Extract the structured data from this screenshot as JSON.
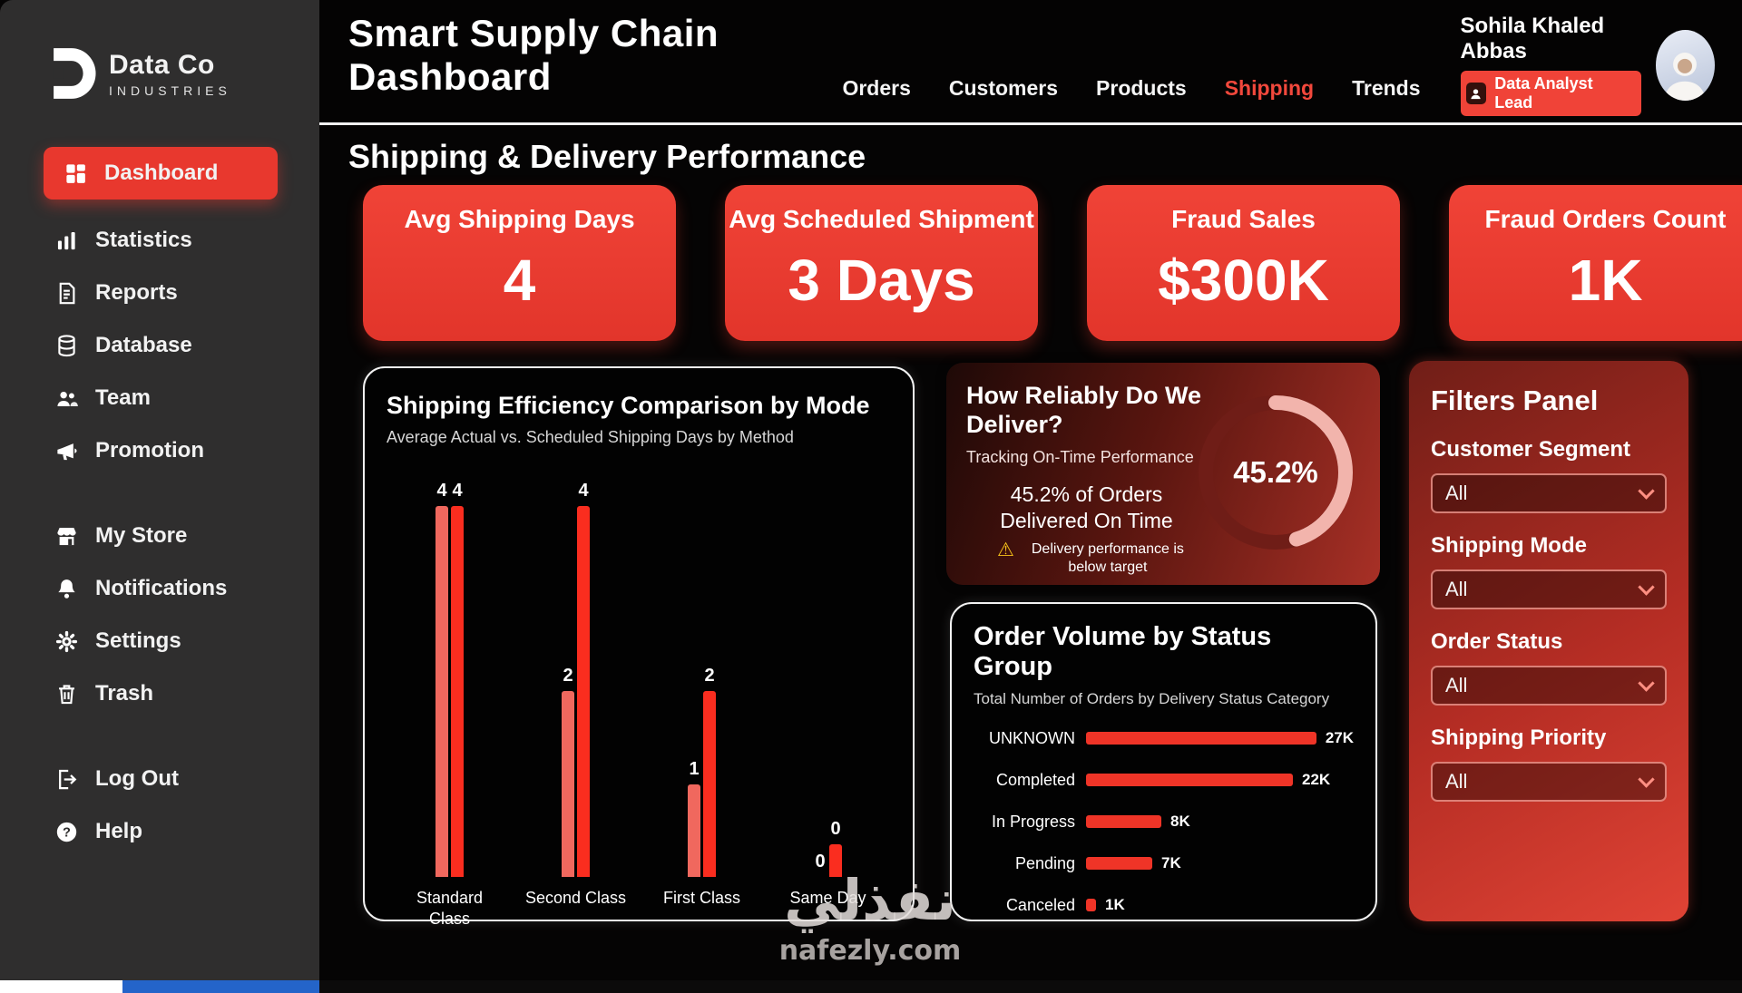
{
  "brand": {
    "name": "Data Co",
    "tagline": "INDUSTRIES"
  },
  "sidebar": {
    "items": [
      {
        "label": "Dashboard"
      },
      {
        "label": "Statistics"
      },
      {
        "label": "Reports"
      },
      {
        "label": "Database"
      },
      {
        "label": "Team"
      },
      {
        "label": "Promotion"
      },
      {
        "label": "My Store"
      },
      {
        "label": "Notifications"
      },
      {
        "label": "Settings"
      },
      {
        "label": "Trash"
      },
      {
        "label": "Log Out"
      },
      {
        "label": "Help"
      }
    ]
  },
  "header": {
    "title": "Smart Supply Chain Dashboard",
    "nav": [
      {
        "label": "Orders"
      },
      {
        "label": "Customers"
      },
      {
        "label": "Products"
      },
      {
        "label": "Shipping"
      },
      {
        "label": "Trends"
      }
    ],
    "active_nav": "Shipping",
    "user": {
      "name": "Sohila Khaled Abbas",
      "role": "Data Analyst Lead"
    }
  },
  "page": {
    "section_title": "Shipping & Delivery Performance"
  },
  "kpis": [
    {
      "label": "Avg Shipping Days",
      "value": "4"
    },
    {
      "label": "Avg Scheduled Shipment",
      "value": "3 Days"
    },
    {
      "label": "Fraud Sales",
      "value": "$300K"
    },
    {
      "label": "Fraud Orders Count",
      "value": "1K"
    }
  ],
  "chart_data": [
    {
      "type": "bar",
      "title": "Shipping Efficiency Comparison by Mode",
      "subtitle": "Average Actual vs. Scheduled Shipping Days by Method",
      "categories": [
        "Standard Class",
        "Second Class",
        "First Class",
        "Same Day"
      ],
      "series": [
        {
          "name": "Actual",
          "color": "#f0685e",
          "values": [
            4,
            2,
            1,
            0
          ]
        },
        {
          "name": "Scheduled",
          "color": "#fa2d1f",
          "values": [
            4,
            4,
            2,
            0.35
          ]
        }
      ],
      "value_labels": [
        [
          "4",
          "4"
        ],
        [
          "2",
          "4"
        ],
        [
          "1",
          "2"
        ],
        [
          "0",
          "0"
        ]
      ],
      "ylim": [
        0,
        4.3
      ],
      "grid": false,
      "legend": "none"
    },
    {
      "type": "donut-gauge",
      "title": "How Reliably Do We Deliver?",
      "subtitle": "Tracking On-Time Performance",
      "value_pct": 45.2,
      "center_label": "45.2%",
      "note": "45.2% of Orders Delivered On Time",
      "warning": "Delivery performance is below target",
      "arc_color": "#f2b4ac",
      "track_color": "#6f1d17"
    },
    {
      "type": "hbar",
      "title": "Order Volume by Status Group",
      "subtitle": "Total Number of Orders by Delivery Status Category",
      "categories": [
        "UNKNOWN",
        "Completed",
        "In Progress",
        "Pending",
        "Canceled"
      ],
      "values": [
        27,
        22,
        8,
        7,
        1
      ],
      "value_labels": [
        "27K",
        "22K",
        "8K",
        "7K",
        "1K"
      ],
      "xlim": [
        0,
        27
      ],
      "bar_color": "#ef3427"
    }
  ],
  "filters": {
    "title": "Filters Panel",
    "groups": [
      {
        "label": "Customer Segment",
        "value": "All"
      },
      {
        "label": "Shipping Mode",
        "value": "All"
      },
      {
        "label": "Order Status",
        "value": "All"
      },
      {
        "label": "Shipping Priority",
        "value": "All"
      }
    ]
  },
  "watermark": {
    "arabic": "نفذلي",
    "domain": "nafezly.com"
  },
  "colors": {
    "accent": "#ee3a2f",
    "sidebar_bg": "#2f2e2e",
    "background": "#050404",
    "warning": "#f6c21a"
  }
}
